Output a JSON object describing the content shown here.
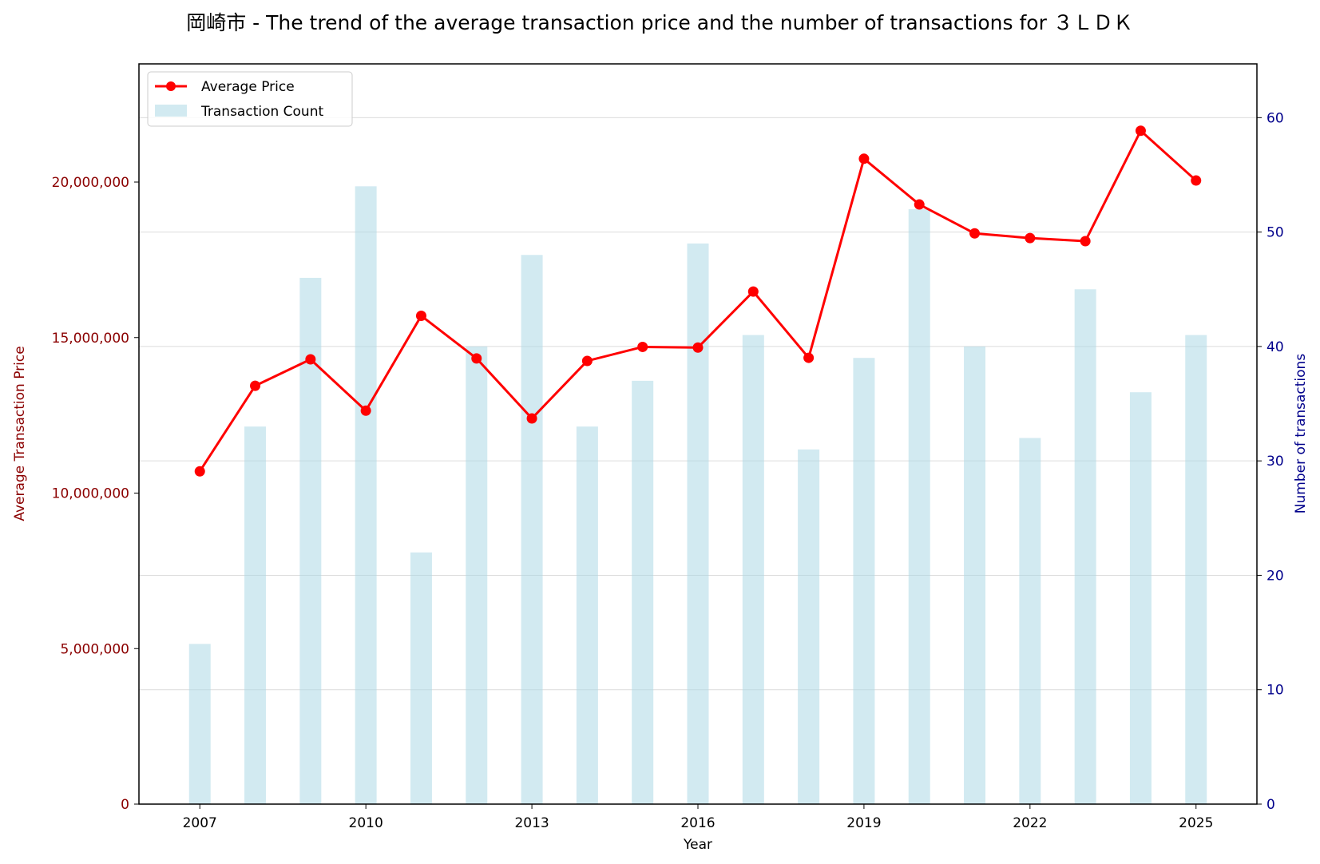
{
  "chart_data": {
    "type": "bar+line",
    "title": "岡崎市 - The trend of the average transaction price and the number of transactions for ３ＬＤＫ",
    "xlabel": "Year",
    "ylabel_left": "Average Transaction Price",
    "ylabel_right": "Number of transactions",
    "x": [
      2007,
      2008,
      2009,
      2010,
      2011,
      2012,
      2013,
      2014,
      2015,
      2016,
      2017,
      2018,
      2019,
      2020,
      2021,
      2022,
      2023,
      2024,
      2025
    ],
    "x_ticks": [
      "2007",
      "2010",
      "2013",
      "2016",
      "2019",
      "2022",
      "2025"
    ],
    "xlim": [
      2005.9,
      2026.1
    ],
    "ylim_left": [
      0,
      23800000
    ],
    "y_ticks_left": [
      "0",
      "5,000,000",
      "10,000,000",
      "15,000,000",
      "20,000,000"
    ],
    "ylim_right": [
      0,
      64.7
    ],
    "y_ticks_right": [
      "0",
      "10",
      "20",
      "30",
      "40",
      "50",
      "60"
    ],
    "grid": true,
    "legend_position": "top-left",
    "series": [
      {
        "name": "Average Price",
        "kind": "line",
        "axis": "left",
        "color": "#ff0000",
        "values": [
          10700000,
          13450000,
          14300000,
          12650000,
          15700000,
          14330000,
          12400000,
          14250000,
          14700000,
          14680000,
          16480000,
          14350000,
          20750000,
          19280000,
          18350000,
          18200000,
          18100000,
          21650000,
          20050000
        ]
      },
      {
        "name": "Transaction Count",
        "kind": "bar",
        "axis": "right",
        "color": "#add8e6",
        "values": [
          14,
          33,
          46,
          54,
          22,
          40,
          48,
          33,
          37,
          49,
          41,
          31,
          39,
          52,
          40,
          32,
          45,
          36,
          41
        ]
      }
    ]
  }
}
